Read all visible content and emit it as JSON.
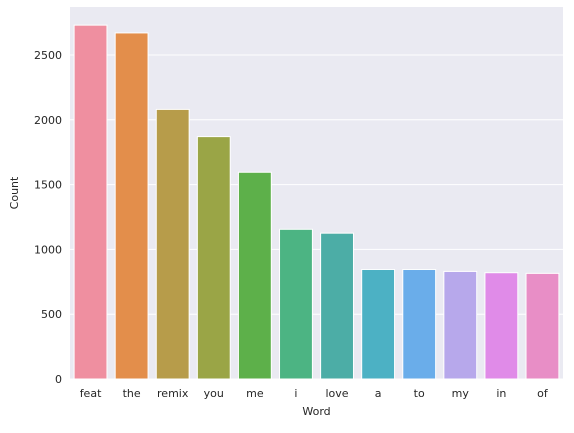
{
  "chart_data": {
    "type": "bar",
    "title": "",
    "xlabel": "Word",
    "ylabel": "Count",
    "categories": [
      "feat",
      "the",
      "remix",
      "you",
      "me",
      "i",
      "love",
      "a",
      "to",
      "my",
      "in",
      "of"
    ],
    "values": [
      2730,
      2670,
      2080,
      1870,
      1595,
      1155,
      1125,
      845,
      845,
      830,
      820,
      815
    ],
    "ylim": [
      0,
      2870
    ],
    "yticks": [
      0,
      500,
      1000,
      1500,
      2000,
      2500
    ],
    "grid": true,
    "background_color": "#eaeaf2",
    "grid_color": "#ffffff",
    "colors": [
      "#ef8fa0",
      "#e38e4b",
      "#b79c4a",
      "#9aa546",
      "#5db04a",
      "#4cb483",
      "#4cada6",
      "#4cb1c4",
      "#6aadea",
      "#b7a8eb",
      "#e08be8",
      "#e88ec6"
    ]
  }
}
